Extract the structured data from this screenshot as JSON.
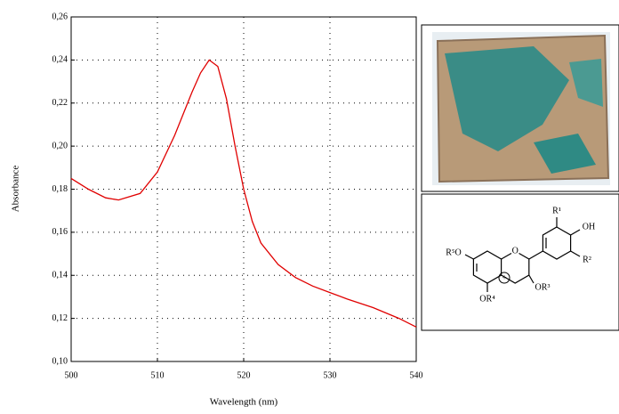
{
  "chart_data": {
    "type": "line",
    "xlabel": "Wavelength (nm)",
    "ylabel": "Absorbance",
    "x": [
      500,
      502,
      504,
      505.5,
      508,
      510,
      512,
      514,
      515,
      516,
      517,
      518,
      519,
      520,
      521,
      522,
      524,
      526,
      528,
      530,
      532,
      535,
      538,
      540
    ],
    "values": [
      0.185,
      0.18,
      0.176,
      0.175,
      0.178,
      0.188,
      0.205,
      0.225,
      0.234,
      0.24,
      0.237,
      0.222,
      0.2,
      0.18,
      0.165,
      0.155,
      0.145,
      0.139,
      0.135,
      0.132,
      0.129,
      0.125,
      0.12,
      0.116
    ],
    "color": "#e00000",
    "xlim": [
      500,
      540
    ],
    "xticks": [
      500,
      510,
      520,
      530,
      540
    ],
    "ylim": [
      0.1,
      0.26
    ],
    "yticks": [
      {
        "value": 0.1,
        "label": "0,10"
      },
      {
        "value": 0.12,
        "label": "0,12"
      },
      {
        "value": 0.14,
        "label": "0,14"
      },
      {
        "value": 0.16,
        "label": "0,16"
      },
      {
        "value": 0.18,
        "label": "0,18"
      },
      {
        "value": 0.2,
        "label": "0,20"
      },
      {
        "value": 0.22,
        "label": "0,22"
      },
      {
        "value": 0.24,
        "label": "0,24"
      },
      {
        "value": 0.26,
        "label": "0,26"
      }
    ],
    "grid": true
  },
  "structure": {
    "labels": [
      "R¹",
      "OH",
      "R²",
      "R⁵O",
      "O",
      "OR³",
      "OR⁴",
      "+"
    ]
  }
}
